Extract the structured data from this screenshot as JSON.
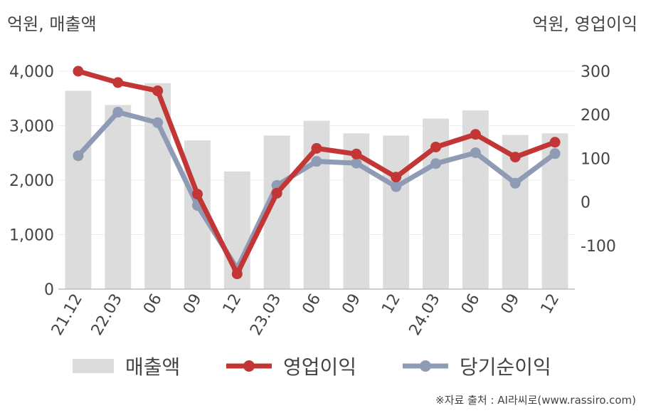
{
  "chart_data": {
    "type": "bar+line",
    "categories": [
      "21.12",
      "22.03",
      "06",
      "09",
      "12",
      "23.03",
      "06",
      "09",
      "12",
      "24.03",
      "06",
      "09",
      "12"
    ],
    "left_axis": {
      "unit_label": "억원, 매출액",
      "ylim": [
        0,
        4000
      ],
      "ticks": [
        "0",
        "1,000",
        "2,000",
        "3,000",
        "4,000"
      ],
      "tick_values": [
        0,
        1000,
        2000,
        3000,
        4000
      ]
    },
    "right_axis": {
      "unit_label": "억원, 영업이익",
      "ylim": [
        -200,
        300
      ],
      "ticks": [
        "-100",
        "0",
        "100",
        "200",
        "300"
      ],
      "tick_values": [
        -100,
        0,
        100,
        200,
        300
      ]
    },
    "series": [
      {
        "name": "매출액",
        "type": "bar",
        "axis": "left",
        "color": "#dcdcdc",
        "values": [
          3640,
          3380,
          3780,
          2730,
          2160,
          2820,
          3090,
          2860,
          2820,
          3130,
          3280,
          2830,
          2860
        ]
      },
      {
        "name": "영업이익",
        "type": "line",
        "axis": "right",
        "color": "#c33636",
        "values": [
          300,
          274,
          255,
          18,
          -165,
          20,
          123,
          110,
          57,
          126,
          155,
          103,
          137
        ]
      },
      {
        "name": "당기순이익",
        "type": "line",
        "axis": "right",
        "color": "#8f9bb5",
        "values": [
          106,
          206,
          182,
          -8,
          -153,
          38,
          93,
          89,
          35,
          88,
          113,
          43,
          111
        ]
      }
    ],
    "grid": true,
    "legend_position": "bottom"
  },
  "source_note": "※자료 출처 : AI라씨로(www.rassiro.com)"
}
